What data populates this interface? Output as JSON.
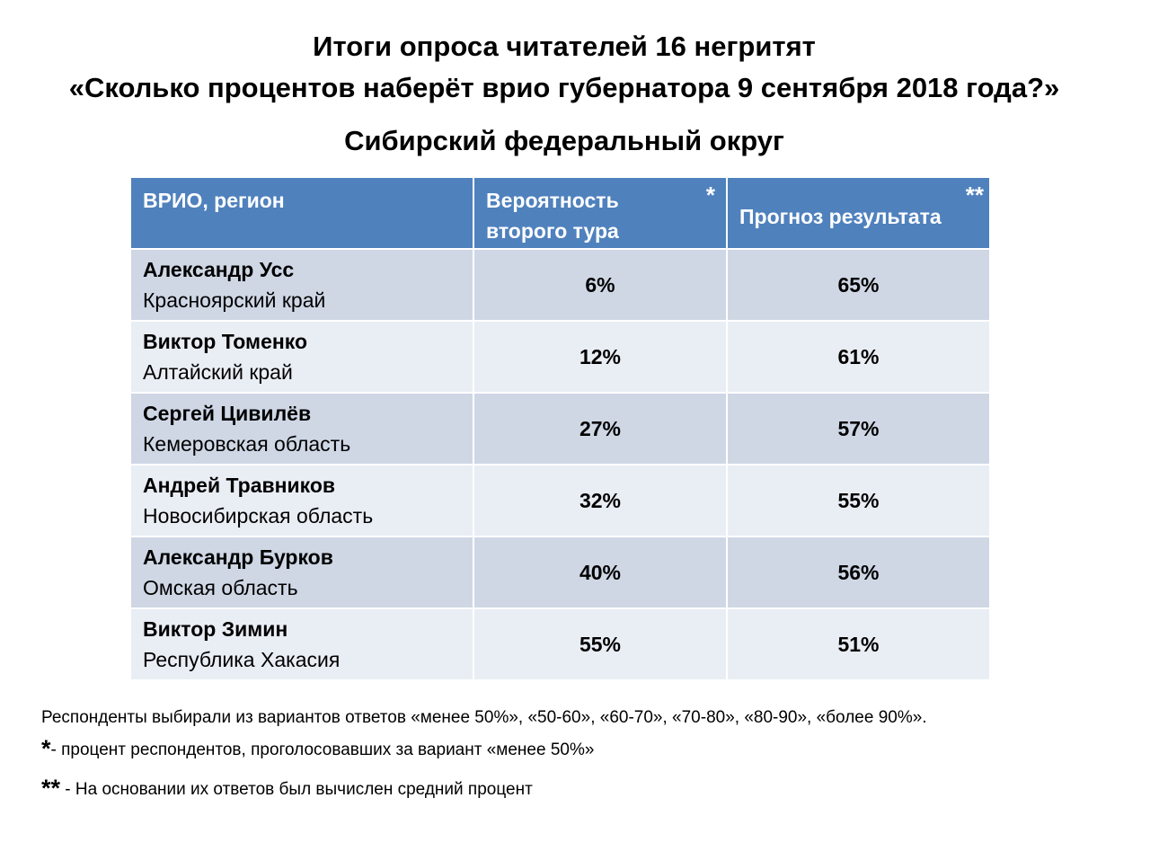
{
  "header": {
    "title_line1": "Итоги опроса читателей 16 негритят",
    "title_line2": "«Сколько процентов наберёт врио губернатора 9 сентября 2018 года?»",
    "subtitle": "Сибирский федеральный округ"
  },
  "table": {
    "columns": [
      {
        "label": "ВРИО, регион",
        "mark": ""
      },
      {
        "label_line1": "Вероятность",
        "label_line2": "второго тура",
        "mark": "*"
      },
      {
        "label": "Прогноз результата",
        "mark": "**"
      }
    ],
    "rows": [
      {
        "name": "Александр Усс",
        "region": "Красноярский край",
        "second_round": "6%",
        "forecast": "65%"
      },
      {
        "name": "Виктор Томенко",
        "region": "Алтайский край",
        "second_round": "12%",
        "forecast": "61%"
      },
      {
        "name": "Сергей Цивилёв",
        "region": "Кемеровская область",
        "second_round": "27%",
        "forecast": "57%"
      },
      {
        "name": "Андрей Травников",
        "region": "Новосибирская область",
        "second_round": "32%",
        "forecast": "55%"
      },
      {
        "name": "Александр Бурков",
        "region": "Омская область",
        "second_round": "40%",
        "forecast": "56%"
      },
      {
        "name": "Виктор Зимин",
        "region": "Республика Хакасия",
        "second_round": "55%",
        "forecast": "51%"
      }
    ]
  },
  "footnotes": {
    "note1": "Респонденты выбирали из вариантов ответов «менее 50%», «50-60», «60-70», «70-80», «80-90», «более 90%».",
    "note2_mark": "*",
    "note2": "- процент респондентов, проголосовавших за вариант «менее 50%»",
    "note3_mark": "**",
    "note3": " - На основании их ответов был вычислен средний процент"
  },
  "colors": {
    "header_bg": "#4f81bd",
    "row_odd_bg": "#cfd7e5",
    "row_even_bg": "#e9edf4"
  }
}
